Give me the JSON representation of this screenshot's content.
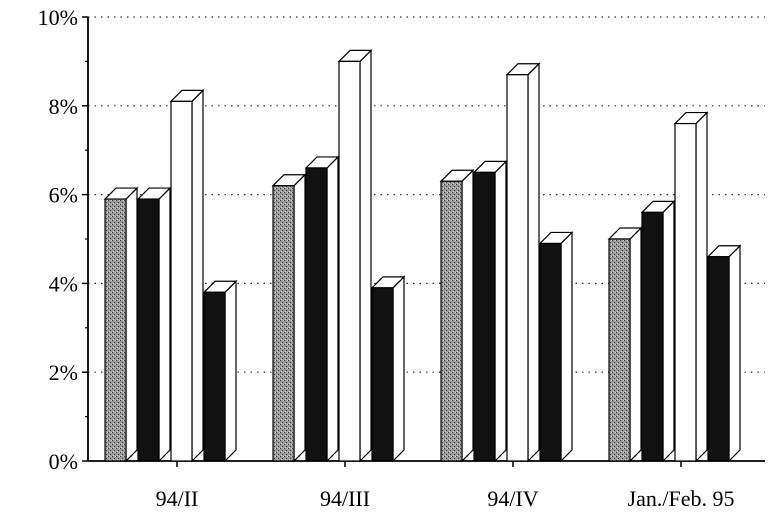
{
  "chart_data": {
    "type": "bar",
    "title": "",
    "xlabel": "",
    "ylabel": "",
    "ylim": [
      0,
      10
    ],
    "y_ticks": [
      {
        "value": 0,
        "label": "0%"
      },
      {
        "value": 2,
        "label": "2%"
      },
      {
        "value": 4,
        "label": "4%"
      },
      {
        "value": 6,
        "label": "6%"
      },
      {
        "value": 8,
        "label": "8%"
      },
      {
        "value": 10,
        "label": "10%"
      }
    ],
    "grid": "dotted horizontal",
    "bar_style": "3d",
    "categories": [
      "94/II",
      "94/III",
      "94/IV",
      "Jan./Feb. 95"
    ],
    "series": [
      {
        "fill": "#8a8a8a",
        "pattern": "stipple",
        "values": [
          5.9,
          6.2,
          6.3,
          5.0
        ]
      },
      {
        "fill": "#111111",
        "values": [
          5.9,
          6.6,
          6.5,
          5.6
        ]
      },
      {
        "fill": "#ffffff",
        "values": [
          8.1,
          9.0,
          8.7,
          7.6
        ]
      },
      {
        "fill": "#111111",
        "values": [
          3.8,
          3.9,
          4.9,
          4.6
        ]
      }
    ]
  }
}
